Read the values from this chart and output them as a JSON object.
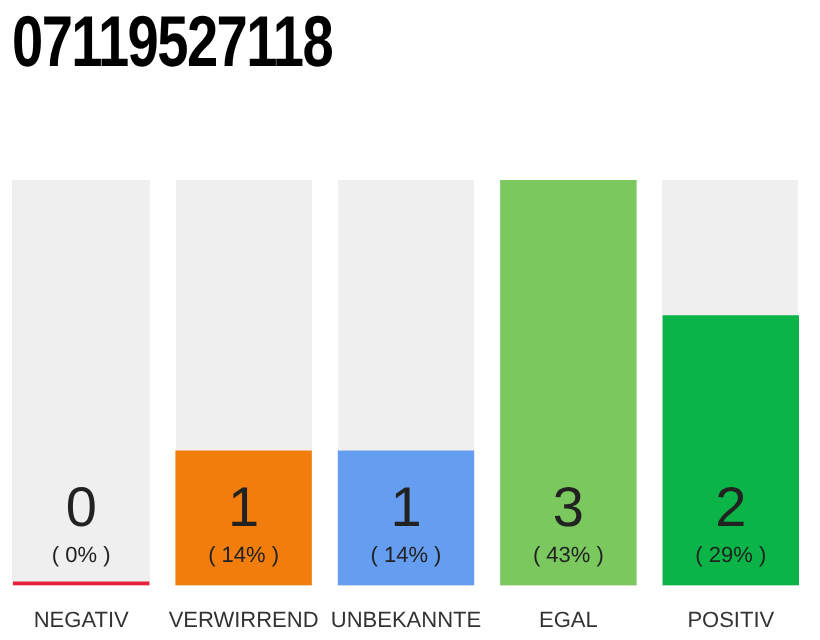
{
  "chart_data": {
    "type": "bar",
    "title": "07119527118",
    "categories": [
      "NEGATIV",
      "VERWIRREND",
      "UNBEKANNTE",
      "EGAL",
      "POSITIV"
    ],
    "values": [
      0,
      1,
      1,
      3,
      2
    ],
    "colors": [
      "#e8203a",
      "#f07d0c",
      "#659ef0",
      "#7ac85e",
      "#0bb446"
    ],
    "data_labels": true,
    "annotations": [
      "( 0% )",
      "( 14% )",
      "( 14% )",
      "( 43% )",
      "( 29% )"
    ],
    "tick_labels": "x",
    "grid": false,
    "legend": false
  }
}
